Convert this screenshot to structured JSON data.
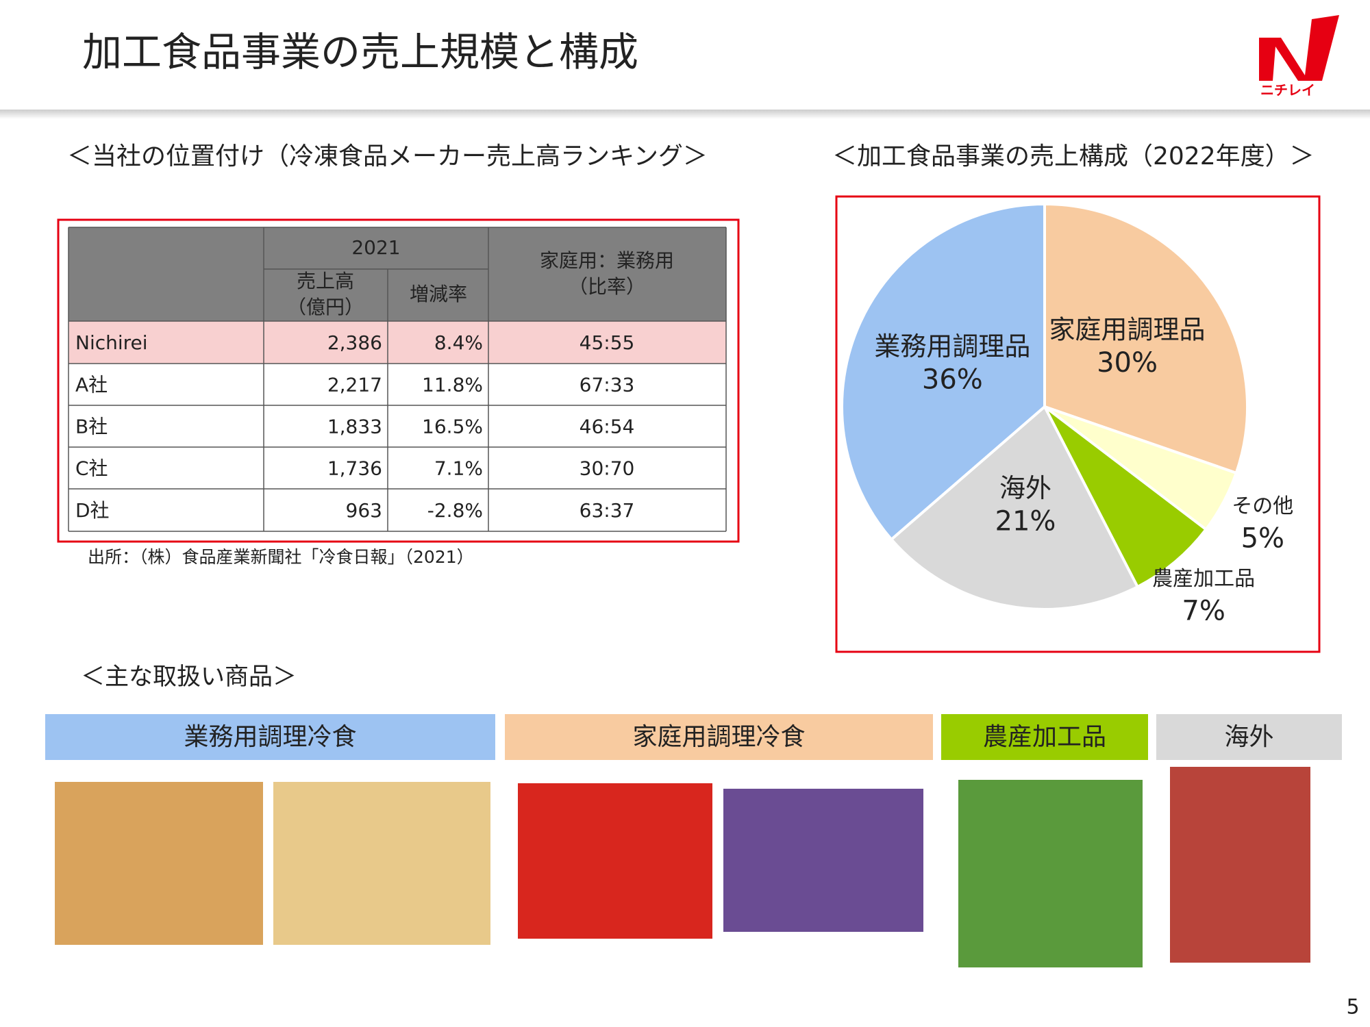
{
  "header": {
    "title": "加工食品事業の売上規模と構成",
    "logo_text": "ニチレイ"
  },
  "ranking": {
    "heading": "＜当社の位置付け（冷凍食品メーカー売上高ランキング＞",
    "table": {
      "header": {
        "year": "2021",
        "sales": [
          "売上高",
          "（億円）"
        ],
        "change": "増減率",
        "ratio": [
          "家庭用：業務用",
          "（比率）"
        ]
      },
      "rows": [
        [
          "Nichirei",
          "2,386",
          "8.4%",
          "45:55"
        ],
        [
          "A社",
          "2,217",
          "11.8%",
          "67:33"
        ],
        [
          "B社",
          "1,833",
          "16.5%",
          "46:54"
        ],
        [
          "C社",
          "1,736",
          "7.1%",
          "30:70"
        ],
        [
          "D社",
          "963",
          "-2.8%",
          "63:37"
        ]
      ]
    },
    "source": "出所：（株）食品産業新聞社「冷食日報」（2021）"
  },
  "chart_data": {
    "type": "pie",
    "title": "＜加工食品事業の売上構成（2022年度）＞",
    "categories": [
      "家庭用調理品",
      "その他",
      "農産加工品",
      "海外",
      "業務用調理品"
    ],
    "values": [
      30,
      5,
      7,
      21,
      36
    ],
    "value_labels": [
      "30%",
      "5%",
      "7%",
      "21%",
      "36%"
    ],
    "colors": [
      "#f8cba0",
      "#ffffcc",
      "#99cc00",
      "#d9d9d9",
      "#9dc3f2"
    ]
  },
  "products": {
    "heading": "＜主な取扱い商品＞",
    "groups": [
      "業務用調理冷食",
      "家庭用調理冷食",
      "農産加工品",
      "海外"
    ]
  },
  "page_number": "5"
}
